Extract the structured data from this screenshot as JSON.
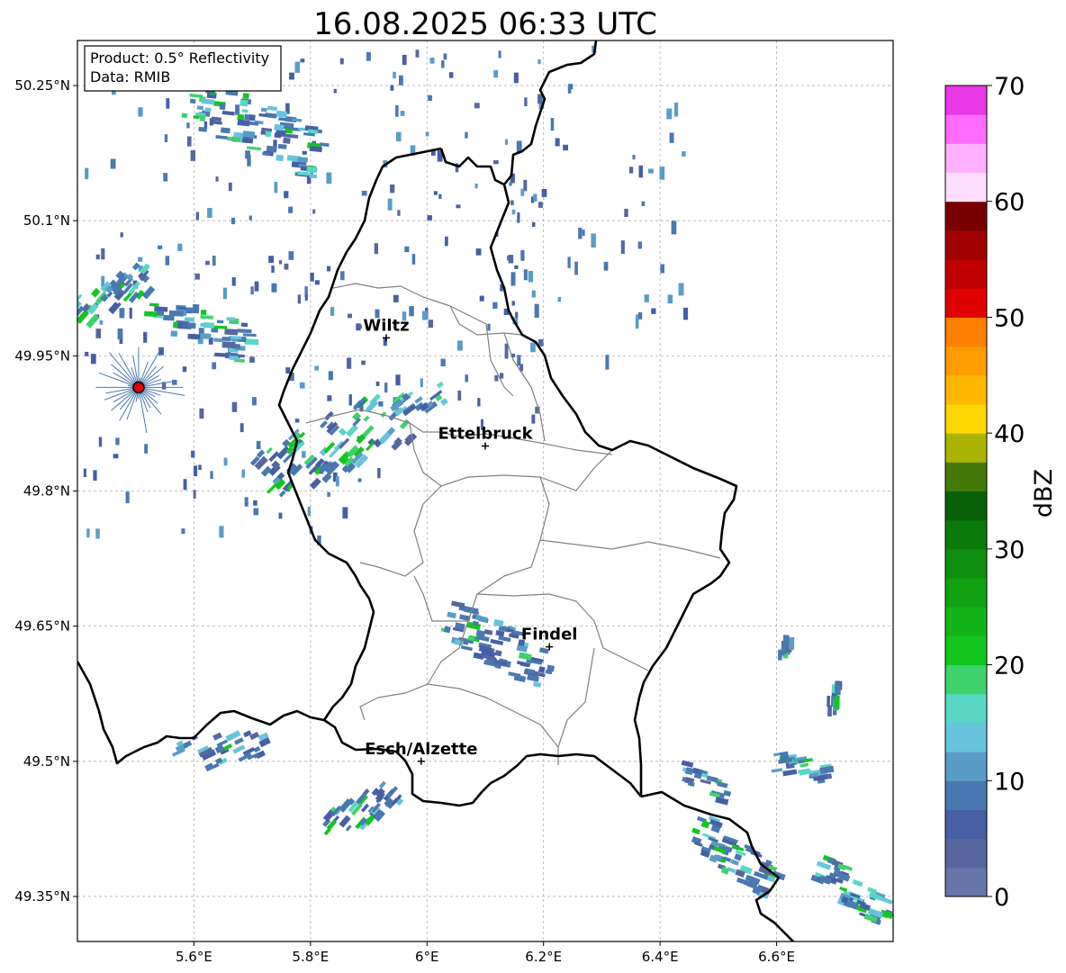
{
  "title": "16.08.2025 06:33 UTC",
  "info_box": {
    "product": "Product: 0.5° Reflectivity",
    "source": "Data: RMIB"
  },
  "axes": {
    "lon_ticks": [
      "5.6°E",
      "5.8°E",
      "6°E",
      "6.2°E",
      "6.4°E",
      "6.6°E"
    ],
    "lat_ticks": [
      "50.25°N",
      "50.1°N",
      "49.95°N",
      "49.8°N",
      "49.65°N",
      "49.5°N",
      "49.35°N"
    ],
    "lon_values": [
      5.6,
      5.8,
      6.0,
      6.2,
      6.4,
      6.6
    ],
    "lat_values": [
      50.25,
      50.1,
      49.95,
      49.8,
      49.65,
      49.5,
      49.35
    ],
    "lon_range": [
      5.4,
      6.8
    ],
    "lat_range": [
      49.3,
      50.3
    ],
    "grid": true
  },
  "cities": [
    {
      "name": "Wiltz",
      "lon": 5.93,
      "lat": 49.97
    },
    {
      "name": "Ettelbruck",
      "lon": 6.1,
      "lat": 49.85
    },
    {
      "name": "Findel",
      "lon": 6.21,
      "lat": 49.627
    },
    {
      "name": "Esch/Alzette",
      "lon": 5.99,
      "lat": 49.5
    }
  ],
  "radar_site": {
    "lon": 5.505,
    "lat": 49.915,
    "color": "#e00000"
  },
  "colorbar": {
    "label": "dBZ",
    "ticks": [
      "0",
      "10",
      "20",
      "30",
      "40",
      "50",
      "60",
      "70"
    ],
    "min": 0,
    "max": 70,
    "colors": [
      "#6677aa",
      "#56679f",
      "#465fa5",
      "#4a78b0",
      "#5a9cc8",
      "#68c3dd",
      "#5ad6c6",
      "#3ed26d",
      "#12c61d",
      "#12b41a",
      "#11a212",
      "#0e8f0e",
      "#0a7a0a",
      "#086008",
      "#457a08",
      "#aab300",
      "#ffd700",
      "#ffb800",
      "#ff9c00",
      "#ff7f00",
      "#e00000",
      "#c00000",
      "#a00000",
      "#7a0000",
      "#ffdeff",
      "#ffb0ff",
      "#ff6aff",
      "#e838e8"
    ]
  }
}
